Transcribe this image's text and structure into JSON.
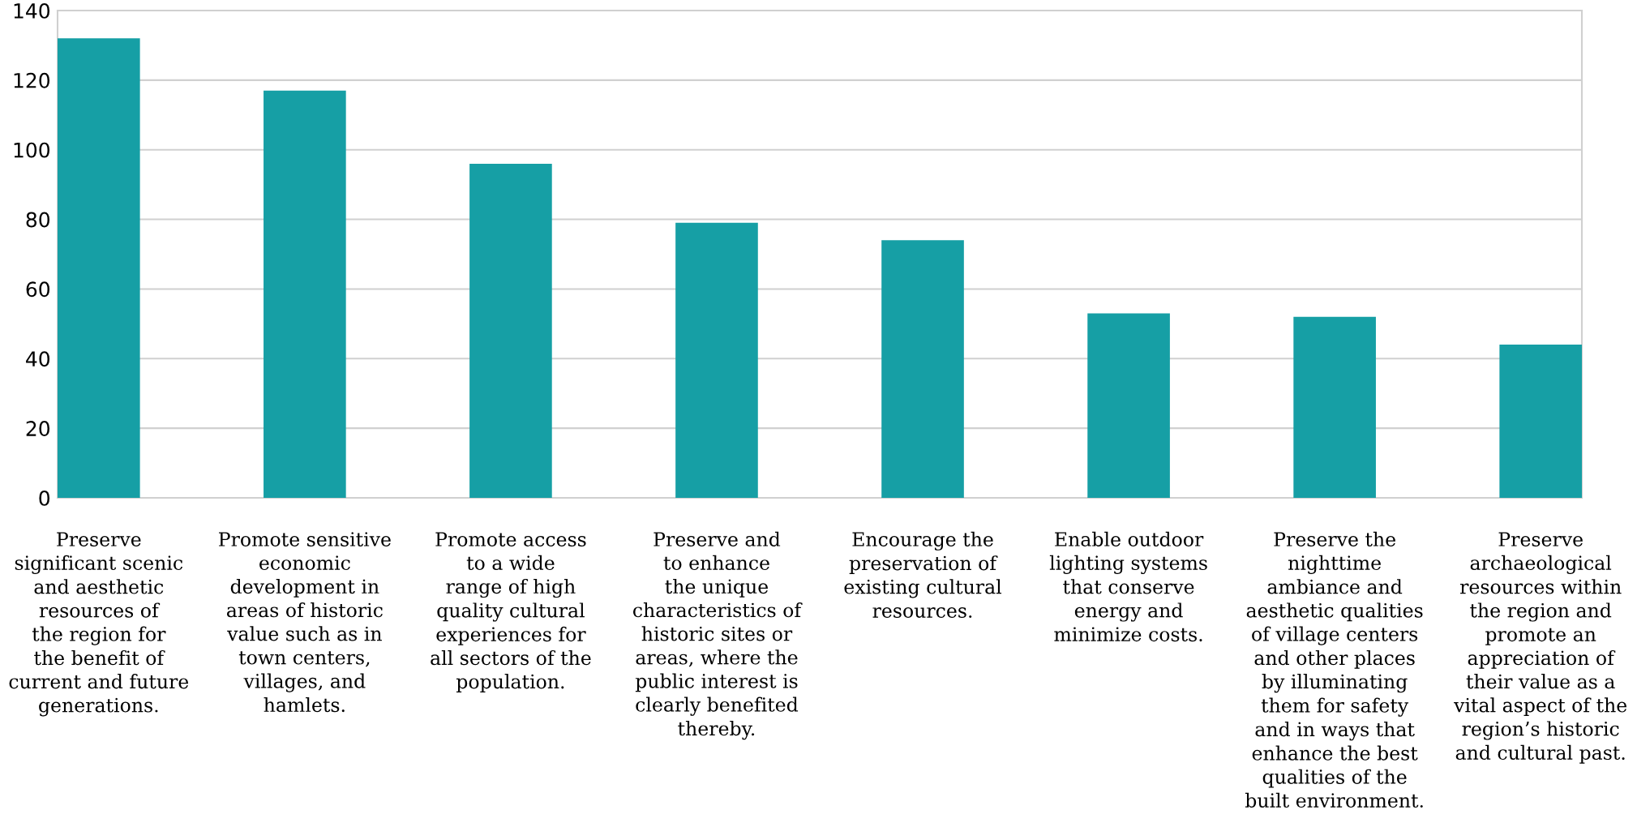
{
  "chart_data": {
    "type": "bar",
    "categories": [
      "Preserve\nsignificant scenic\nand aesthetic\nresources of\nthe region for\nthe benefit of\ncurrent and future\ngenerations.",
      "Promote sensitive\neconomic\ndevelopment in\nareas of historic\nvalue such as in\ntown centers,\nvillages, and\nhamlets.",
      "Promote access\nto a wide\nrange of high\nquality cultural\nexperiences for\nall sectors of the\npopulation.",
      "Preserve and\nto enhance\nthe unique\ncharacteristics of\nhistoric sites or\nareas, where the\npublic interest is\nclearly benefited\nthereby.",
      "Encourage the\npreservation of\nexisting cultural\nresources.",
      "Enable outdoor\nlighting systems\nthat conserve\nenergy and\nminimize costs.",
      "Preserve the\nnighttime\nambiance and\naesthetic qualities\nof village centers\nand other places\nby illuminating\nthem for safety\nand in ways that\nenhance the best\nqualities of the\nbuilt environment.",
      "Preserve\narchaeological\nresources within\nthe region and\npromote an\nappreciation of\ntheir value as a\nvital aspect of the\nregion’s historic\nand cultural past."
    ],
    "values": [
      132,
      117,
      96,
      79,
      74,
      53,
      52,
      44
    ],
    "color": "#169fa5",
    "ylim": [
      0,
      140
    ],
    "yticks": [
      0,
      20,
      40,
      60,
      80,
      100,
      120,
      140
    ],
    "grid": "y"
  }
}
